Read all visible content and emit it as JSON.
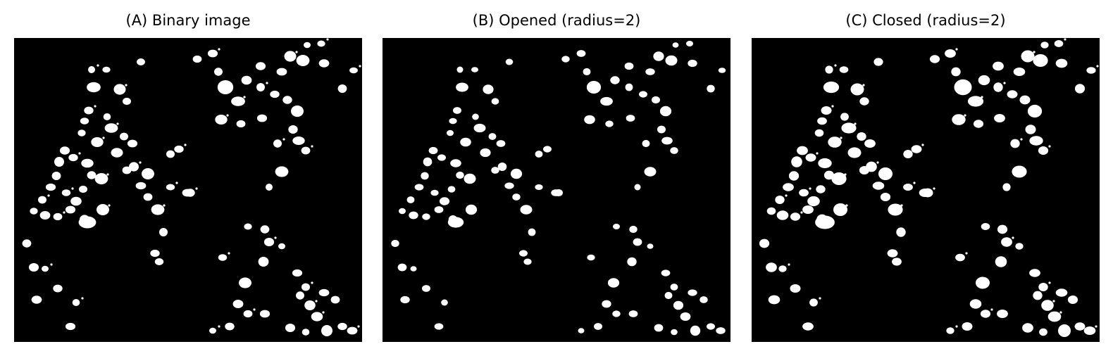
{
  "panels": [
    {
      "title": "(A) Binary image",
      "variant": "binary"
    },
    {
      "title": "(B) Opened (radius=2)",
      "variant": "opened"
    },
    {
      "title": "(C) Closed (radius=2)",
      "variant": "closed"
    }
  ],
  "colors": {
    "background": "#000000",
    "foreground": "#ffffff"
  }
}
